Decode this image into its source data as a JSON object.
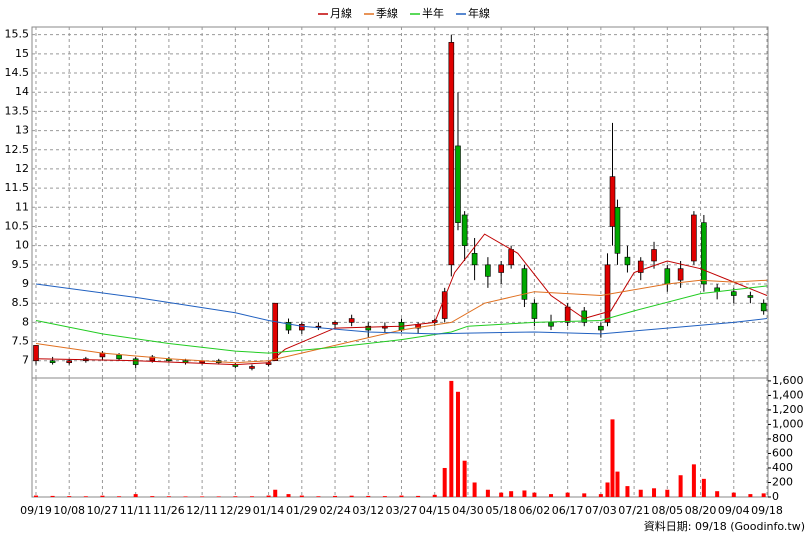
{
  "chart_data": {
    "type": "candlestick",
    "legend": "top",
    "grid": true,
    "up_color": "#e00000",
    "down_color": "#00a800",
    "volume_color": "#ff0000",
    "xlim": [
      -0.12,
      22.03
    ],
    "xticks": [
      {
        "value": 0,
        "label": "09/19"
      },
      {
        "value": 1,
        "label": "10/08"
      },
      {
        "value": 2,
        "label": "10/27"
      },
      {
        "value": 3,
        "label": "11/11"
      },
      {
        "value": 4,
        "label": "11/26"
      },
      {
        "value": 5,
        "label": "12/11"
      },
      {
        "value": 6,
        "label": "12/29"
      },
      {
        "value": 7,
        "label": "01/14"
      },
      {
        "value": 8,
        "label": "01/29"
      },
      {
        "value": 9,
        "label": "02/24"
      },
      {
        "value": 10,
        "label": "03/12"
      },
      {
        "value": 11,
        "label": "03/27"
      },
      {
        "value": 12,
        "label": "04/15"
      },
      {
        "value": 13,
        "label": "04/30"
      },
      {
        "value": 14,
        "label": "05/18"
      },
      {
        "value": 15,
        "label": "06/02"
      },
      {
        "value": 16,
        "label": "06/17"
      },
      {
        "value": 17,
        "label": "07/03"
      },
      {
        "value": 18,
        "label": "07/21"
      },
      {
        "value": 19,
        "label": "08/05"
      },
      {
        "value": 20,
        "label": "08/20"
      },
      {
        "value": 21,
        "label": "09/04"
      },
      {
        "value": 22,
        "label": "09/18"
      }
    ],
    "ylim": [
      6.55,
      15.7
    ],
    "yticks": [
      7,
      7.5,
      8,
      8.5,
      9,
      9.5,
      10,
      10.5,
      11,
      11.5,
      12,
      12.5,
      13,
      13.5,
      14,
      14.5,
      15,
      15.5
    ],
    "y2lim": [
      0,
      1640
    ],
    "y2ticks": [
      0,
      200,
      400,
      600,
      800,
      {
        "value": 1000,
        "label": "1,000"
      },
      {
        "value": 1200,
        "label": "1,200"
      },
      {
        "value": 1400,
        "label": "1,400"
      },
      {
        "value": 1600,
        "label": "1,600"
      }
    ],
    "candles": {
      "x": [
        0,
        0.5,
        1,
        1.5,
        2,
        2.5,
        3,
        3.5,
        4,
        4.5,
        5,
        5.5,
        6,
        6.5,
        7,
        7.2,
        7.6,
        8,
        8.5,
        9,
        9.5,
        10,
        10.5,
        11,
        11.5,
        12,
        12.3,
        12.5,
        12.7,
        12.9,
        13.2,
        13.6,
        14,
        14.3,
        14.7,
        15,
        15.5,
        16,
        16.5,
        17,
        17.2,
        17.35,
        17.5,
        17.8,
        18.2,
        18.6,
        19,
        19.4,
        19.8,
        20.1,
        20.5,
        21,
        21.5,
        21.9
      ],
      "open": [
        7.0,
        7.0,
        6.95,
        7.0,
        7.1,
        7.15,
        7.05,
        7.0,
        7.05,
        7.0,
        6.95,
        7.0,
        6.9,
        6.8,
        6.9,
        7.0,
        8.0,
        7.8,
        7.9,
        7.95,
        8.0,
        7.9,
        7.85,
        8.0,
        7.85,
        8.0,
        8.1,
        9.5,
        12.6,
        10.8,
        9.8,
        9.5,
        9.3,
        9.5,
        9.4,
        8.5,
        8.0,
        8.0,
        8.3,
        7.9,
        8.0,
        10.5,
        11.0,
        9.7,
        9.3,
        9.6,
        9.4,
        9.1,
        9.6,
        10.6,
        8.9,
        8.8,
        8.7,
        8.5
      ],
      "high": [
        7.4,
        7.1,
        7.05,
        7.1,
        7.25,
        7.2,
        7.1,
        7.15,
        7.1,
        7.05,
        7.0,
        7.05,
        6.95,
        6.9,
        7.0,
        8.5,
        8.1,
        8.0,
        8.0,
        8.05,
        8.2,
        8.0,
        8.0,
        8.1,
        8.0,
        8.1,
        8.9,
        15.5,
        14.0,
        10.9,
        10.2,
        9.7,
        9.6,
        10.0,
        9.5,
        8.6,
        8.2,
        8.5,
        8.4,
        8.0,
        9.8,
        13.2,
        11.2,
        10.0,
        9.7,
        10.1,
        9.5,
        9.6,
        10.9,
        10.8,
        9.0,
        8.9,
        8.8,
        8.6
      ],
      "low": [
        6.9,
        6.9,
        6.9,
        6.95,
        7.0,
        7.0,
        6.8,
        6.95,
        6.95,
        6.9,
        6.9,
        6.9,
        6.8,
        6.75,
        6.85,
        7.0,
        7.7,
        7.7,
        7.8,
        7.85,
        7.9,
        7.6,
        7.75,
        7.75,
        7.7,
        7.9,
        8.0,
        9.2,
        10.4,
        9.6,
        9.1,
        8.9,
        9.0,
        9.4,
        8.4,
        7.9,
        7.8,
        7.9,
        7.9,
        7.6,
        7.9,
        10.0,
        9.5,
        9.3,
        9.1,
        9.4,
        8.8,
        8.9,
        9.5,
        8.8,
        8.6,
        8.5,
        8.5,
        8.2
      ],
      "close": [
        7.4,
        6.95,
        7.0,
        7.05,
        7.2,
        7.05,
        6.9,
        7.1,
        7.0,
        6.95,
        7.0,
        6.95,
        6.85,
        6.85,
        6.95,
        8.5,
        7.8,
        7.95,
        7.9,
        8.0,
        8.1,
        7.8,
        7.9,
        7.8,
        7.95,
        8.05,
        8.8,
        15.3,
        10.6,
        10.0,
        9.5,
        9.2,
        9.5,
        9.9,
        8.6,
        8.1,
        7.9,
        8.4,
        8.0,
        7.8,
        9.5,
        11.8,
        9.8,
        9.5,
        9.6,
        9.9,
        9.0,
        9.4,
        10.8,
        9.0,
        8.8,
        8.7,
        8.65,
        8.3
      ],
      "volume": [
        20,
        15,
        12,
        10,
        18,
        10,
        40,
        12,
        10,
        8,
        8,
        8,
        10,
        10,
        20,
        100,
        40,
        20,
        10,
        15,
        18,
        15,
        12,
        20,
        15,
        30,
        400,
        1600,
        1450,
        500,
        200,
        100,
        60,
        80,
        90,
        60,
        40,
        60,
        50,
        40,
        200,
        1070,
        350,
        150,
        100,
        120,
        100,
        300,
        450,
        250,
        80,
        60,
        40,
        50
      ]
    },
    "series": [
      {
        "name": "月線",
        "color": "#c00000",
        "x": [
          0,
          3,
          6,
          7,
          7.5,
          9,
          11,
          12,
          12.6,
          13.5,
          14.5,
          15.5,
          16.5,
          17.3,
          18,
          19,
          20,
          21,
          22
        ],
        "values": [
          7.05,
          7.0,
          6.9,
          6.95,
          7.3,
          7.85,
          7.9,
          8.0,
          9.3,
          10.3,
          9.8,
          8.7,
          8.1,
          8.3,
          9.3,
          9.6,
          9.4,
          9.05,
          8.7
        ]
      },
      {
        "name": "季線",
        "color": "#e07020",
        "x": [
          0,
          2,
          4,
          6,
          7,
          9,
          11,
          12.5,
          13.5,
          15,
          17,
          18,
          19,
          20,
          21,
          22
        ],
        "values": [
          7.45,
          7.2,
          7.05,
          6.95,
          7.0,
          7.4,
          7.8,
          8.0,
          8.5,
          8.8,
          8.7,
          8.85,
          9.0,
          9.1,
          9.05,
          9.1
        ]
      },
      {
        "name": "半年",
        "color": "#22cc22",
        "x": [
          0,
          2,
          4,
          6,
          7,
          9,
          11,
          12.5,
          13,
          15,
          17,
          18,
          20,
          22
        ],
        "values": [
          8.05,
          7.7,
          7.45,
          7.25,
          7.2,
          7.35,
          7.55,
          7.75,
          7.9,
          8.0,
          8.05,
          8.3,
          8.75,
          8.95
        ]
      },
      {
        "name": "年線",
        "color": "#2060c0",
        "x": [
          0,
          3,
          6,
          7,
          8,
          10,
          12,
          13,
          15,
          17,
          19,
          21,
          22
        ],
        "values": [
          9.0,
          8.65,
          8.25,
          8.05,
          7.9,
          7.75,
          7.7,
          7.72,
          7.75,
          7.7,
          7.85,
          8.0,
          8.1
        ]
      }
    ],
    "footnote": "資料日期: 09/18 (Goodinfo.tw)"
  }
}
